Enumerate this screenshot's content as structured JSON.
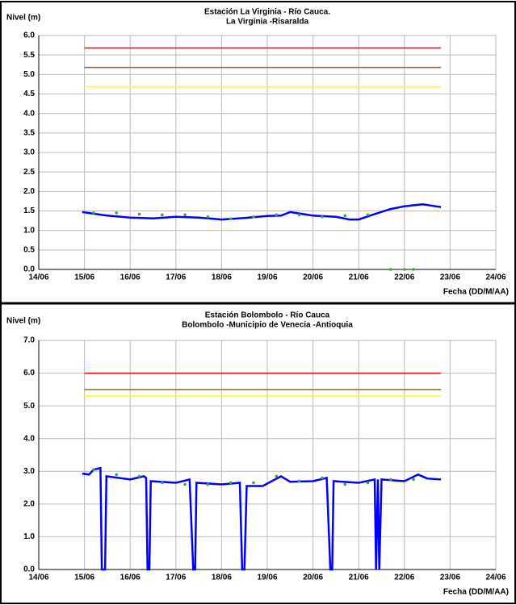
{
  "chart_data": [
    {
      "type": "line",
      "title": "Estación La Virginia  - Río Cauca.",
      "subtitle": "La Virginia -Risaralda",
      "y_label": "Nivel (m)",
      "x_label": "Fecha (DD/M/AA)",
      "grid": true,
      "xlim": [
        14,
        24
      ],
      "xticks": [
        {
          "value": 14,
          "label": "14/06"
        },
        {
          "value": 15,
          "label": "15/06"
        },
        {
          "value": 16,
          "label": "16/06"
        },
        {
          "value": 17,
          "label": "17/06"
        },
        {
          "value": 18,
          "label": "18/06"
        },
        {
          "value": 19,
          "label": "19/06"
        },
        {
          "value": 20,
          "label": "20/06"
        },
        {
          "value": 21,
          "label": "21/06"
        },
        {
          "value": 22,
          "label": "22/06"
        },
        {
          "value": 23,
          "label": "23/06"
        },
        {
          "value": 24,
          "label": "24/06"
        }
      ],
      "ylim": [
        0,
        6
      ],
      "yticks": [
        {
          "value": 0,
          "label": "0.0"
        },
        {
          "value": 0.5,
          "label": "0.5"
        },
        {
          "value": 1,
          "label": "1.0"
        },
        {
          "value": 1.5,
          "label": "1.5"
        },
        {
          "value": 2,
          "label": "2.0"
        },
        {
          "value": 2.5,
          "label": "2.5"
        },
        {
          "value": 3,
          "label": "3.0"
        },
        {
          "value": 3.5,
          "label": "3.5"
        },
        {
          "value": 4,
          "label": "4.0"
        },
        {
          "value": 4.5,
          "label": "4.5"
        },
        {
          "value": 5,
          "label": "5.0"
        },
        {
          "value": 5.5,
          "label": "5.5"
        },
        {
          "value": 6,
          "label": "6.0"
        }
      ],
      "series": [
        {
          "mode": "line",
          "color": "#ff0000",
          "width": 1.5,
          "x": [
            15,
            22.8
          ],
          "values": [
            5.68,
            5.68
          ]
        },
        {
          "mode": "line",
          "color": "#996633",
          "width": 1.5,
          "x": [
            15,
            22.8
          ],
          "values": [
            5.18,
            5.18
          ]
        },
        {
          "mode": "line",
          "color": "#ffff00",
          "width": 1.5,
          "x": [
            15,
            22.8
          ],
          "values": [
            4.68,
            4.68
          ]
        },
        {
          "mode": "line",
          "color": "#0000ff",
          "width": 2.5,
          "x": [
            14.95,
            15.5,
            16,
            16.5,
            17,
            17.5,
            18,
            18.5,
            19,
            19.3,
            19.5,
            20,
            20.5,
            20.8,
            21,
            21.3,
            21.7,
            22,
            22.4,
            22.8
          ],
          "values": [
            1.47,
            1.38,
            1.33,
            1.31,
            1.35,
            1.33,
            1.28,
            1.32,
            1.37,
            1.38,
            1.47,
            1.38,
            1.35,
            1.28,
            1.28,
            1.4,
            1.55,
            1.62,
            1.67,
            1.6
          ]
        },
        {
          "mode": "markers",
          "color": "#33aa33",
          "x": [
            15.2,
            15.7,
            16.2,
            16.7,
            17.2,
            17.7,
            18.2,
            18.7,
            19.2,
            19.7,
            20.2,
            20.7,
            21.2,
            21.7,
            22,
            22.2
          ],
          "values": [
            1.45,
            1.45,
            1.42,
            1.4,
            1.4,
            1.35,
            1.3,
            1.35,
            1.4,
            1.4,
            1.35,
            1.38,
            1.4,
            0,
            0,
            0
          ]
        }
      ]
    },
    {
      "type": "line",
      "title": "Estación Bolombolo - Río Cauca",
      "subtitle": "Bolombolo -Municipio de Venecia -Antioquia",
      "y_label": "Nivel (m)",
      "x_label": "Fecha (DD/M/AA)",
      "grid": true,
      "xlim": [
        14,
        24
      ],
      "xticks": [
        {
          "value": 14,
          "label": "14/06"
        },
        {
          "value": 15,
          "label": "15/06"
        },
        {
          "value": 16,
          "label": "16/06"
        },
        {
          "value": 17,
          "label": "17/06"
        },
        {
          "value": 18,
          "label": "18/06"
        },
        {
          "value": 19,
          "label": "19/06"
        },
        {
          "value": 20,
          "label": "20/06"
        },
        {
          "value": 21,
          "label": "21/06"
        },
        {
          "value": 22,
          "label": "22/06"
        },
        {
          "value": 23,
          "label": "23/06"
        },
        {
          "value": 24,
          "label": "24/06"
        }
      ],
      "ylim": [
        0,
        7
      ],
      "yticks": [
        {
          "value": 0,
          "label": "0.0"
        },
        {
          "value": 1,
          "label": "1.0"
        },
        {
          "value": 2,
          "label": "2.0"
        },
        {
          "value": 3,
          "label": "3.0"
        },
        {
          "value": 4,
          "label": "4.0"
        },
        {
          "value": 5,
          "label": "5.0"
        },
        {
          "value": 6,
          "label": "6.0"
        },
        {
          "value": 7,
          "label": "7.0"
        }
      ],
      "series": [
        {
          "mode": "line",
          "color": "#ff0000",
          "width": 1.5,
          "x": [
            15,
            22.8
          ],
          "values": [
            6,
            6
          ]
        },
        {
          "mode": "line",
          "color": "#996633",
          "width": 1.5,
          "x": [
            15,
            22.8
          ],
          "values": [
            5.5,
            5.5
          ]
        },
        {
          "mode": "line",
          "color": "#ffff00",
          "width": 1.5,
          "x": [
            15,
            22.8
          ],
          "values": [
            5.3,
            5.3
          ]
        },
        {
          "mode": "line",
          "color": "#0000ff",
          "width": 2.5,
          "x": [
            14.95,
            15.1,
            15.2,
            15.35,
            15.38,
            15.45,
            15.48,
            16,
            16.3,
            16.35,
            16.38,
            16.42,
            16.45,
            17,
            17.3,
            17.38,
            17.42,
            17.45,
            18,
            18.4,
            18.45,
            18.5,
            18.55,
            18.9,
            19.3,
            19.5,
            20,
            20.3,
            20.38,
            20.42,
            20.45,
            21,
            21.35,
            21.38,
            21.42,
            21.45,
            21.5,
            22,
            22.3,
            22.5,
            22.8
          ],
          "values": [
            2.93,
            2.9,
            3.05,
            3.1,
            0,
            0,
            2.85,
            2.75,
            2.85,
            2.8,
            0,
            0,
            2.7,
            2.65,
            2.75,
            0,
            0,
            2.65,
            2.6,
            2.65,
            0,
            0,
            2.55,
            2.55,
            2.85,
            2.68,
            2.7,
            2.8,
            0,
            0,
            2.7,
            2.65,
            2.75,
            0,
            2.75,
            0,
            2.75,
            2.7,
            2.9,
            2.78,
            2.75
          ]
        },
        {
          "mode": "markers",
          "color": "#33aa33",
          "x": [
            15.2,
            15.7,
            16.2,
            16.7,
            17.2,
            17.7,
            18.2,
            18.7,
            19.2,
            19.7,
            20.2,
            20.7,
            21.2,
            21.7,
            22.2
          ],
          "values": [
            3.05,
            2.9,
            2.85,
            2.65,
            2.6,
            2.6,
            2.65,
            2.65,
            2.85,
            2.7,
            2.8,
            2.6,
            2.65,
            2.75,
            2.75
          ]
        }
      ]
    }
  ]
}
